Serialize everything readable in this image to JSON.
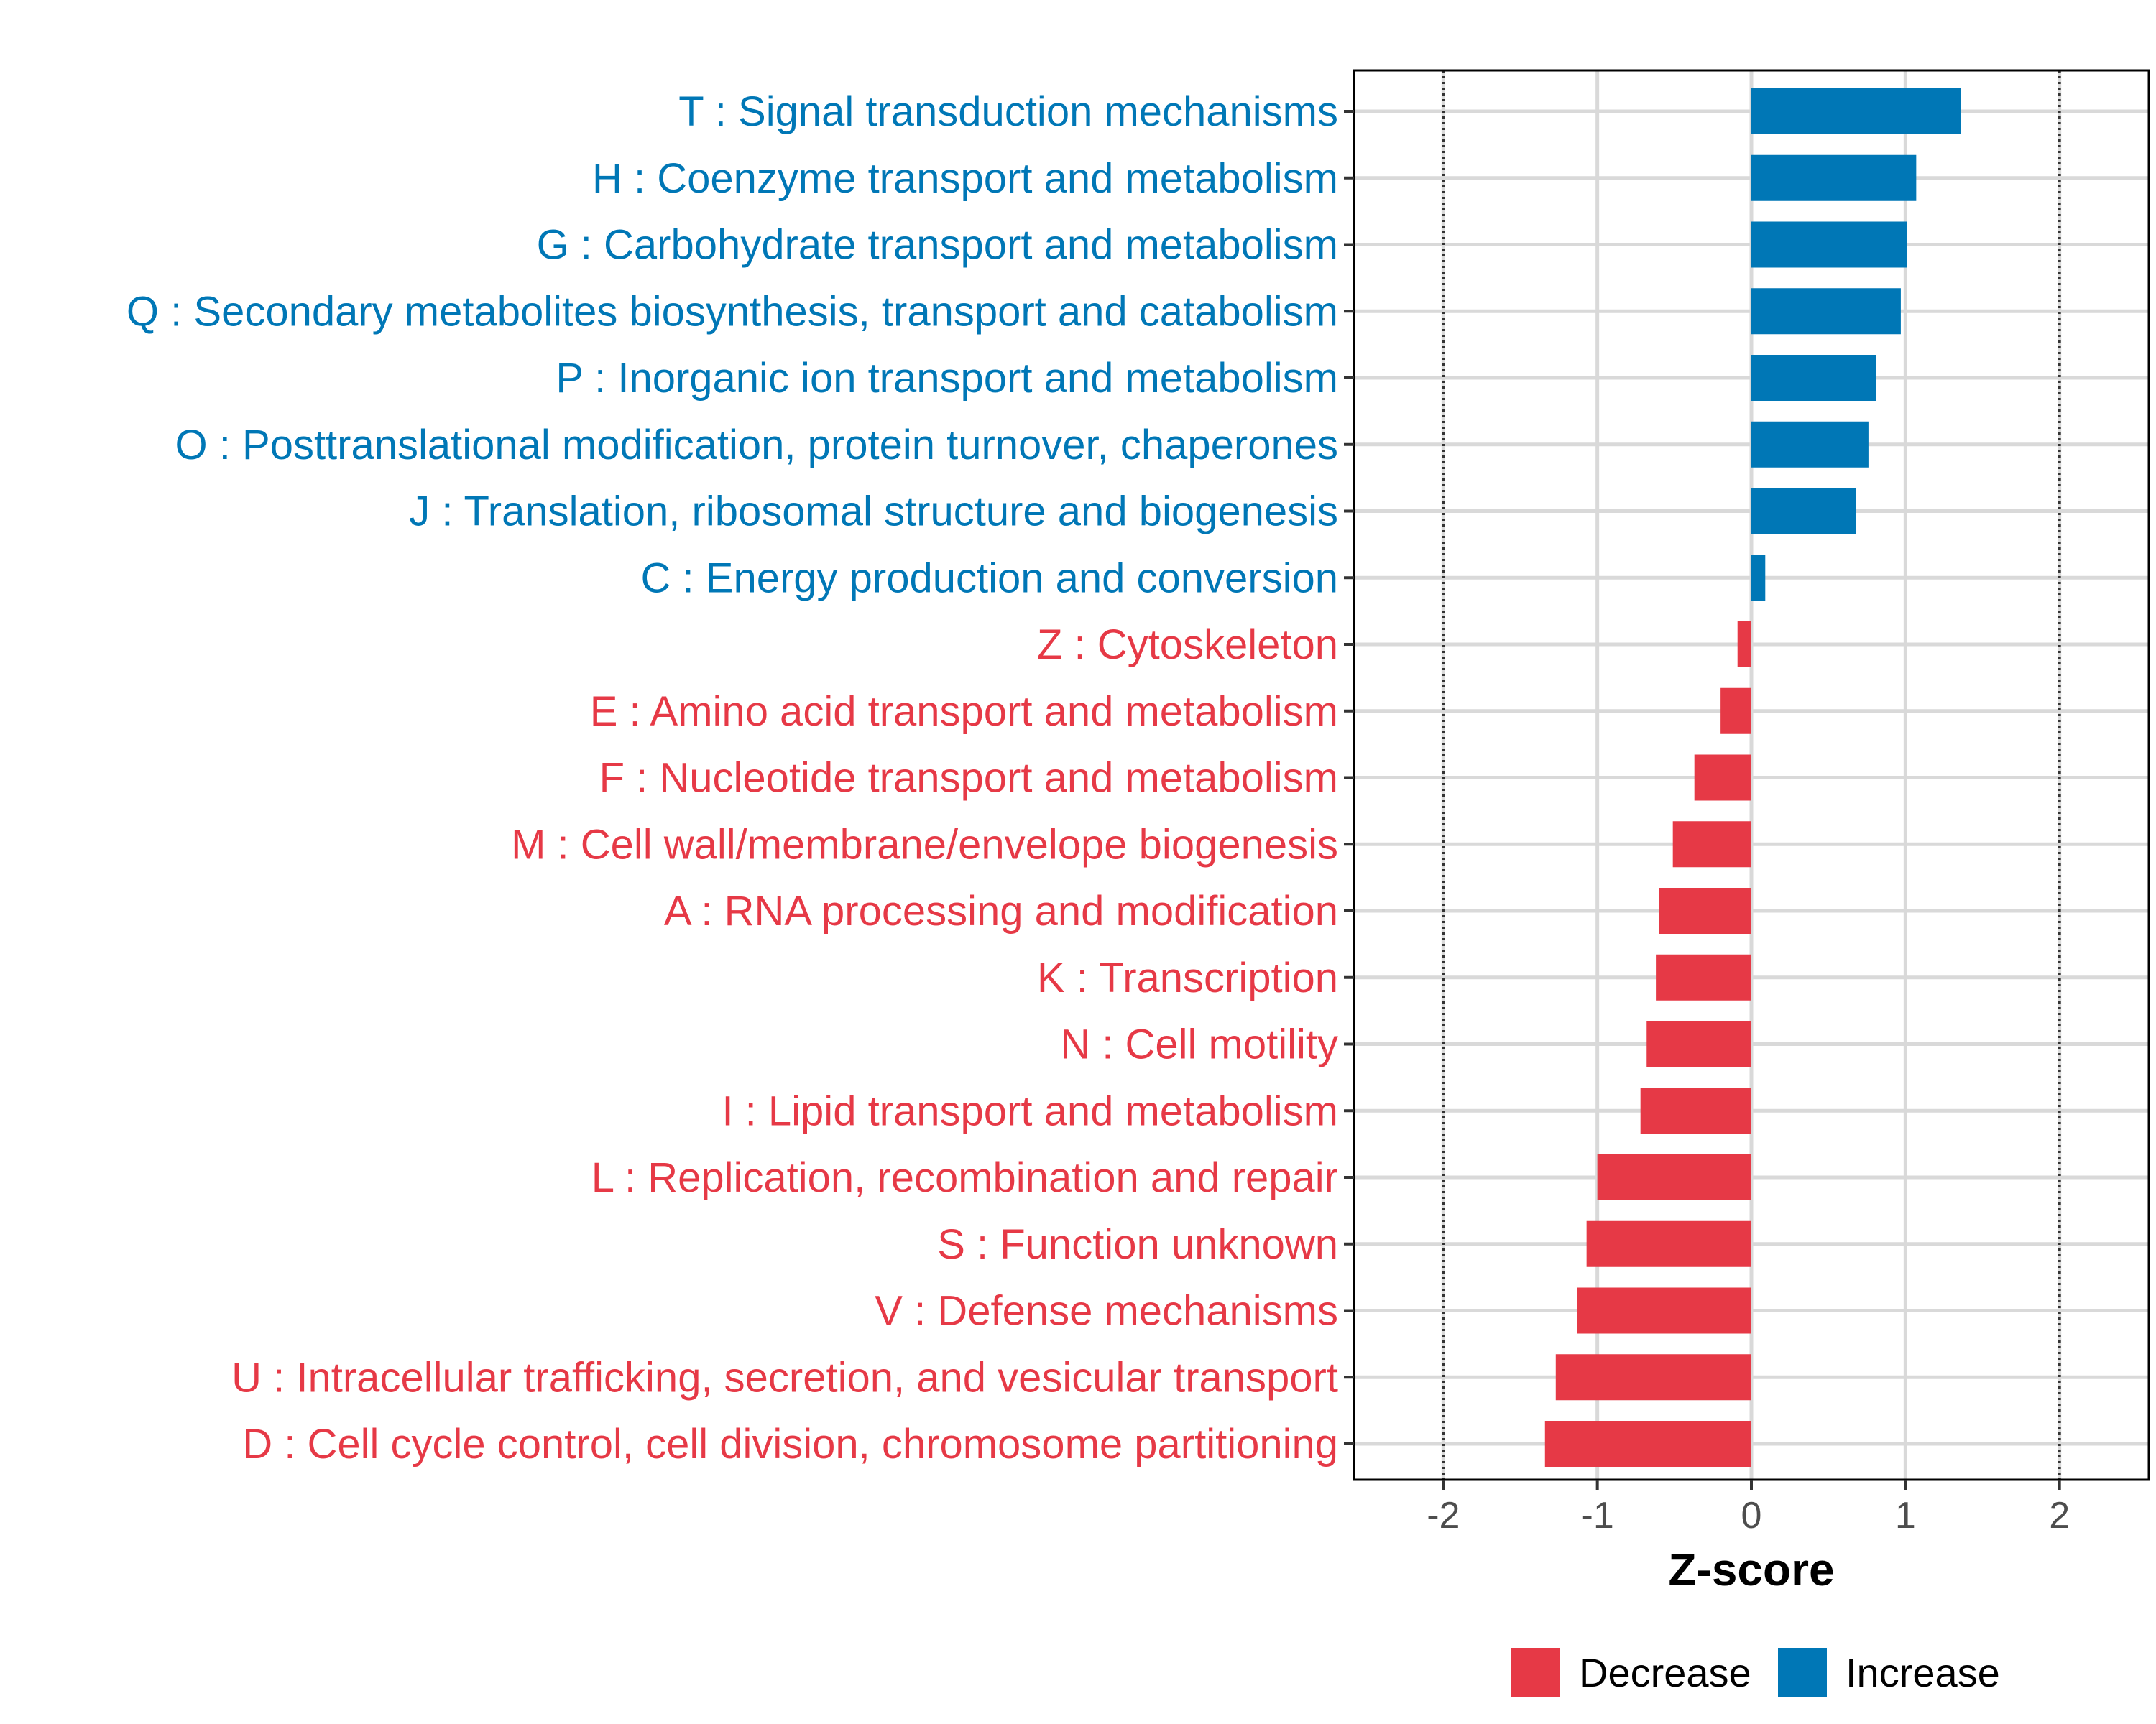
{
  "chart_data": {
    "type": "bar",
    "orientation": "horizontal",
    "xlabel": "Z-score",
    "xlim": [
      -2.58,
      2.58
    ],
    "xticks": [
      -2,
      -1,
      0,
      1,
      2
    ],
    "xtick_labels": [
      "-2",
      "-1",
      "0",
      "1",
      "2"
    ],
    "reference_lines": [
      -2,
      2
    ],
    "categories": [
      "T : Signal transduction mechanisms",
      "H : Coenzyme transport and metabolism",
      "G : Carbohydrate transport and metabolism",
      "Q : Secondary metabolites biosynthesis, transport and catabolism",
      "P : Inorganic ion transport and metabolism",
      "O : Posttranslational modification, protein turnover, chaperones",
      "J : Translation, ribosomal structure and biogenesis",
      "C : Energy production and conversion",
      "Z : Cytoskeleton",
      "E : Amino acid transport and metabolism",
      "F : Nucleotide transport and metabolism",
      "M : Cell wall/membrane/envelope biogenesis",
      "A : RNA processing and modification",
      "K : Transcription",
      "N : Cell motility",
      "I : Lipid transport and metabolism",
      "L : Replication, recombination and repair",
      "S : Function unknown",
      "V : Defense mechanisms",
      "U : Intracellular trafficking, secretion, and vesicular transport",
      "D : Cell cycle control, cell division, chromosome partitioning"
    ],
    "values": [
      1.36,
      1.07,
      1.01,
      0.97,
      0.81,
      0.76,
      0.68,
      0.09,
      -0.09,
      -0.2,
      -0.37,
      -0.51,
      -0.6,
      -0.62,
      -0.68,
      -0.72,
      -1.0,
      -1.07,
      -1.13,
      -1.27,
      -1.34
    ],
    "groups": [
      "Increase",
      "Increase",
      "Increase",
      "Increase",
      "Increase",
      "Increase",
      "Increase",
      "Increase",
      "Decrease",
      "Decrease",
      "Decrease",
      "Decrease",
      "Decrease",
      "Decrease",
      "Decrease",
      "Decrease",
      "Decrease",
      "Decrease",
      "Decrease",
      "Decrease",
      "Decrease"
    ],
    "legend": {
      "position": "bottom-right",
      "entries": [
        {
          "label": "Decrease",
          "color": "#e63946"
        },
        {
          "label": "Increase",
          "color": "#0077b6"
        }
      ]
    },
    "colors": {
      "Increase": "#0077b6",
      "Decrease": "#e63946"
    },
    "grid": true
  }
}
